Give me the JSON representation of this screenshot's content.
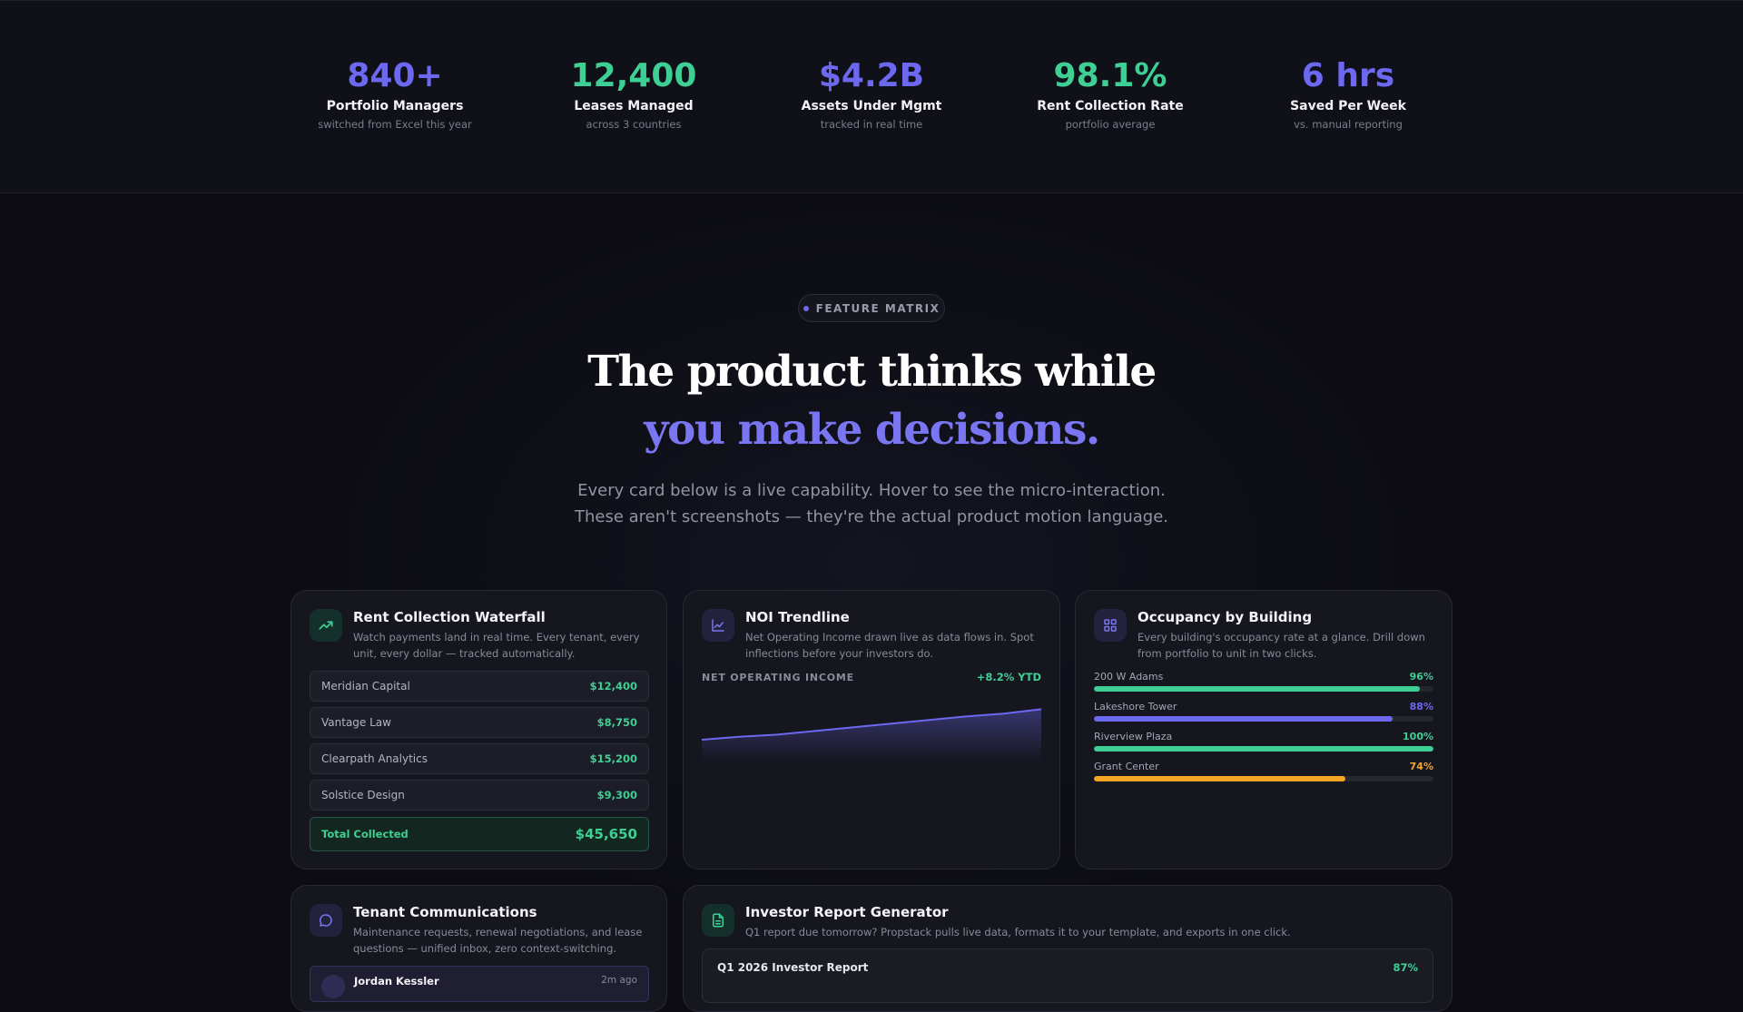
{
  "stats": [
    {
      "value": "840+",
      "label": "Portfolio Managers",
      "sub": "switched from Excel this year",
      "color": "#6c68f0"
    },
    {
      "value": "12,400",
      "label": "Leases Managed",
      "sub": "across 3 countries",
      "color": "#3ecf95"
    },
    {
      "value": "$4.2B",
      "label": "Assets Under Mgmt",
      "sub": "tracked in real time",
      "color": "#6c68f0"
    },
    {
      "value": "98.1%",
      "label": "Rent Collection Rate",
      "sub": "portfolio average",
      "color": "#3ecf95"
    },
    {
      "value": "6 hrs",
      "label": "Saved Per Week",
      "sub": "vs. manual reporting",
      "color": "#6c68f0"
    }
  ],
  "hero": {
    "badge": "FEATURE MATRIX",
    "headline_line1": "The product thinks while",
    "headline_line2": "you make decisions.",
    "subhead_line1": "Every card below is a live capability. Hover to see the micro-interaction.",
    "subhead_line2": "These aren't screenshots — they're the actual product motion language."
  },
  "cards": {
    "waterfall": {
      "title": "Rent Collection Waterfall",
      "desc": "Watch payments land in real time. Every tenant, every unit, every dollar — tracked automatically.",
      "icon": "trending-up-icon",
      "rows": [
        {
          "name": "Meridian Capital",
          "amount": "$12,400"
        },
        {
          "name": "Vantage Law",
          "amount": "$8,750"
        },
        {
          "name": "Clearpath Analytics",
          "amount": "$15,200"
        },
        {
          "name": "Solstice Design",
          "amount": "$9,300"
        }
      ],
      "total_label": "Total Collected",
      "total_amount": "$45,650"
    },
    "noi": {
      "title": "NOI Trendline",
      "desc": "Net Operating Income drawn live as data flows in. Spot inflections before your investors do.",
      "icon": "line-chart-icon",
      "label": "NET OPERATING INCOME",
      "ytd": "+8.2% YTD"
    },
    "occupancy": {
      "title": "Occupancy by Building",
      "desc": "Every building's occupancy rate at a glance. Drill down from portfolio to unit in two clicks.",
      "icon": "grid-icon",
      "buildings": [
        {
          "name": "200 W Adams",
          "pct_label": "96%",
          "pct": 96,
          "color": "#3ecf95"
        },
        {
          "name": "Lakeshore Tower",
          "pct_label": "88%",
          "pct": 88,
          "color": "#6c68f0"
        },
        {
          "name": "Riverview Plaza",
          "pct_label": "100%",
          "pct": 100,
          "color": "#3ecf95"
        },
        {
          "name": "Grant Center",
          "pct_label": "74%",
          "pct": 74,
          "color": "#f5a524"
        }
      ]
    },
    "tenant": {
      "title": "Tenant Communications",
      "desc": "Maintenance requests, renewal negotiations, and lease questions — unified inbox, zero context-switching.",
      "icon": "message-bubble-icon",
      "message_name": "Jordan Kessler",
      "message_time": "2m ago"
    },
    "investor": {
      "title": "Investor Report Generator",
      "desc": "Q1 report due tomorrow? Propstack pulls live data, formats it to your template, and exports in one click.",
      "icon": "document-icon",
      "report_title": "Q1 2026 Investor Report",
      "report_pct": "87%"
    }
  },
  "chart_data": {
    "type": "area",
    "title": "NET OPERATING INCOME",
    "x": [
      0,
      1,
      2,
      3,
      4,
      5,
      6,
      7,
      8,
      9
    ],
    "y": [
      30,
      34,
      37,
      42,
      47,
      52,
      57,
      62,
      66,
      72
    ],
    "ylim": [
      0,
      100
    ],
    "grid": false,
    "color": "#6c68f0"
  }
}
